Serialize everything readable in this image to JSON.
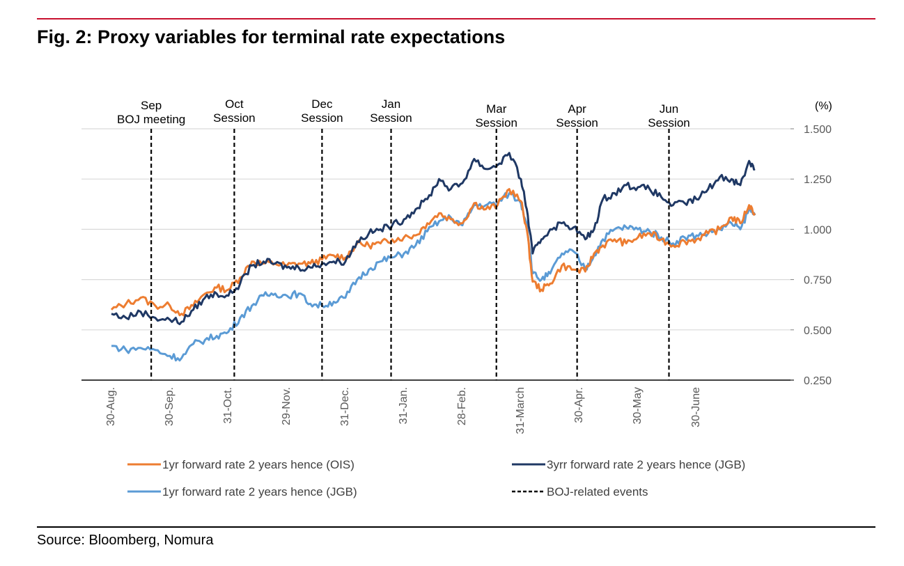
{
  "figure": {
    "title": "Fig. 2: Proxy variables for terminal rate expectations",
    "source": "Source: Bloomberg, Nomura",
    "accent_color": "#c8102e"
  },
  "chart_data": {
    "type": "line",
    "title": "Fig. 2: Proxy variables for terminal rate expectations",
    "ylabel": "(%)",
    "ylim": [
      0.25,
      1.5
    ],
    "yticks": [
      "1.500",
      "1.250",
      "1.000",
      "0.750",
      "0.500",
      "0.250"
    ],
    "grid": true,
    "legend_position": "bottom",
    "x_tick_labels": [
      "30-Aug.",
      "30-Sep.",
      "31-Oct.",
      "29-Nov.",
      "31-Dec.",
      "31-Jan.",
      "28-Feb.",
      "31-March",
      "30-Apr.",
      "30-May",
      "30-June"
    ],
    "events": [
      {
        "label_lines": [
          "Sep",
          "BOJ meeting"
        ],
        "after_tick": 0,
        "fraction": 0.68
      },
      {
        "label_lines": [
          "Oct",
          "Session"
        ],
        "after_tick": 1,
        "fraction": 1.1
      },
      {
        "label_lines": [
          "Dec",
          "Session"
        ],
        "after_tick": 3,
        "fraction": 0.6
      },
      {
        "label_lines": [
          "Jan",
          "Session"
        ],
        "after_tick": 4,
        "fraction": 0.78
      },
      {
        "label_lines": [
          "Mar",
          "Session"
        ],
        "after_tick": 6,
        "fraction": 0.58
      },
      {
        "label_lines": [
          "Apr",
          "Session"
        ],
        "after_tick": 7,
        "fraction": 0.96
      },
      {
        "label_lines": [
          "Jun",
          "Session"
        ],
        "after_tick": 9,
        "fraction": 0.53
      }
    ],
    "series": [
      {
        "name": "1yr forward rate 2 years hence (OIS)",
        "color": "#ed7d31",
        "points": [
          [
            0,
            0.6
          ],
          [
            0.25,
            0.63
          ],
          [
            0.5,
            0.66
          ],
          [
            0.75,
            0.62
          ],
          [
            1.0,
            0.62
          ],
          [
            1.2,
            0.58
          ],
          [
            1.4,
            0.62
          ],
          [
            1.6,
            0.68
          ],
          [
            1.8,
            0.71
          ],
          [
            2.0,
            0.7
          ],
          [
            2.2,
            0.76
          ],
          [
            2.4,
            0.84
          ],
          [
            2.6,
            0.83
          ],
          [
            2.8,
            0.83
          ],
          [
            3.0,
            0.82
          ],
          [
            3.2,
            0.83
          ],
          [
            3.4,
            0.83
          ],
          [
            3.6,
            0.85
          ],
          [
            3.8,
            0.87
          ],
          [
            4.0,
            0.86
          ],
          [
            4.2,
            0.93
          ],
          [
            4.4,
            0.92
          ],
          [
            4.6,
            0.93
          ],
          [
            4.8,
            0.95
          ],
          [
            5.0,
            0.96
          ],
          [
            5.2,
            0.97
          ],
          [
            5.4,
            1.03
          ],
          [
            5.6,
            1.08
          ],
          [
            5.8,
            1.05
          ],
          [
            6.0,
            1.03
          ],
          [
            6.2,
            1.13
          ],
          [
            6.4,
            1.1
          ],
          [
            6.6,
            1.12
          ],
          [
            6.8,
            1.2
          ],
          [
            7.0,
            1.14
          ],
          [
            7.1,
            1.0
          ],
          [
            7.2,
            0.74
          ],
          [
            7.35,
            0.7
          ],
          [
            7.5,
            0.73
          ],
          [
            7.7,
            0.82
          ],
          [
            7.9,
            0.8
          ],
          [
            8.1,
            0.79
          ],
          [
            8.25,
            0.88
          ],
          [
            8.4,
            0.92
          ],
          [
            8.6,
            0.95
          ],
          [
            8.8,
            0.93
          ],
          [
            9.0,
            0.96
          ],
          [
            9.2,
            0.98
          ],
          [
            9.4,
            0.95
          ],
          [
            9.6,
            0.92
          ],
          [
            9.8,
            0.94
          ],
          [
            10.0,
            0.95
          ],
          [
            10.2,
            0.98
          ],
          [
            10.4,
            1.0
          ],
          [
            10.6,
            1.06
          ],
          [
            10.75,
            1.03
          ],
          [
            10.9,
            1.12
          ],
          [
            11.0,
            1.08
          ]
        ]
      },
      {
        "name": "1yr forward rate 2 years hence (JGB)",
        "color": "#5b9bd5",
        "points": [
          [
            0,
            0.42
          ],
          [
            0.25,
            0.4
          ],
          [
            0.5,
            0.41
          ],
          [
            0.75,
            0.4
          ],
          [
            1.0,
            0.37
          ],
          [
            1.2,
            0.36
          ],
          [
            1.4,
            0.43
          ],
          [
            1.6,
            0.45
          ],
          [
            1.8,
            0.47
          ],
          [
            2.0,
            0.49
          ],
          [
            2.2,
            0.56
          ],
          [
            2.4,
            0.62
          ],
          [
            2.6,
            0.67
          ],
          [
            2.8,
            0.68
          ],
          [
            3.0,
            0.67
          ],
          [
            3.2,
            0.68
          ],
          [
            3.4,
            0.63
          ],
          [
            3.6,
            0.62
          ],
          [
            3.8,
            0.64
          ],
          [
            4.0,
            0.66
          ],
          [
            4.2,
            0.75
          ],
          [
            4.4,
            0.8
          ],
          [
            4.6,
            0.84
          ],
          [
            4.8,
            0.86
          ],
          [
            5.0,
            0.88
          ],
          [
            5.2,
            0.92
          ],
          [
            5.4,
            0.99
          ],
          [
            5.6,
            1.04
          ],
          [
            5.8,
            1.06
          ],
          [
            6.0,
            1.02
          ],
          [
            6.2,
            1.12
          ],
          [
            6.4,
            1.12
          ],
          [
            6.6,
            1.13
          ],
          [
            6.8,
            1.18
          ],
          [
            7.0,
            1.13
          ],
          [
            7.1,
            1.03
          ],
          [
            7.2,
            0.78
          ],
          [
            7.35,
            0.75
          ],
          [
            7.5,
            0.78
          ],
          [
            7.7,
            0.88
          ],
          [
            7.9,
            0.89
          ],
          [
            8.1,
            0.8
          ],
          [
            8.25,
            0.87
          ],
          [
            8.4,
            0.95
          ],
          [
            8.6,
            1.0
          ],
          [
            8.8,
            1.01
          ],
          [
            9.0,
            1.0
          ],
          [
            9.2,
            0.99
          ],
          [
            9.4,
            0.96
          ],
          [
            9.6,
            0.93
          ],
          [
            9.8,
            0.96
          ],
          [
            10.0,
            0.97
          ],
          [
            10.2,
            0.98
          ],
          [
            10.4,
            1.0
          ],
          [
            10.6,
            1.03
          ],
          [
            10.75,
            1.0
          ],
          [
            10.9,
            1.1
          ],
          [
            11.0,
            1.07
          ]
        ]
      },
      {
        "name": "3yrr forward rate 2 years hence (JGB)",
        "color": "#1f3864",
        "points": [
          [
            0,
            0.58
          ],
          [
            0.25,
            0.56
          ],
          [
            0.5,
            0.59
          ],
          [
            0.75,
            0.56
          ],
          [
            1.0,
            0.55
          ],
          [
            1.2,
            0.54
          ],
          [
            1.4,
            0.6
          ],
          [
            1.6,
            0.66
          ],
          [
            1.8,
            0.68
          ],
          [
            2.0,
            0.67
          ],
          [
            2.2,
            0.73
          ],
          [
            2.4,
            0.82
          ],
          [
            2.6,
            0.84
          ],
          [
            2.8,
            0.83
          ],
          [
            3.0,
            0.81
          ],
          [
            3.2,
            0.81
          ],
          [
            3.4,
            0.81
          ],
          [
            3.6,
            0.83
          ],
          [
            3.8,
            0.84
          ],
          [
            4.0,
            0.84
          ],
          [
            4.2,
            0.94
          ],
          [
            4.4,
            0.98
          ],
          [
            4.6,
            1.0
          ],
          [
            4.8,
            1.02
          ],
          [
            5.0,
            1.05
          ],
          [
            5.2,
            1.1
          ],
          [
            5.4,
            1.15
          ],
          [
            5.6,
            1.25
          ],
          [
            5.8,
            1.2
          ],
          [
            6.0,
            1.23
          ],
          [
            6.2,
            1.35
          ],
          [
            6.4,
            1.3
          ],
          [
            6.6,
            1.32
          ],
          [
            6.8,
            1.38
          ],
          [
            7.0,
            1.25
          ],
          [
            7.1,
            1.1
          ],
          [
            7.2,
            0.88
          ],
          [
            7.35,
            0.95
          ],
          [
            7.5,
            1.0
          ],
          [
            7.7,
            1.03
          ],
          [
            7.9,
            1.01
          ],
          [
            8.1,
            0.95
          ],
          [
            8.25,
            1.0
          ],
          [
            8.4,
            1.15
          ],
          [
            8.6,
            1.18
          ],
          [
            8.8,
            1.22
          ],
          [
            9.0,
            1.21
          ],
          [
            9.2,
            1.2
          ],
          [
            9.4,
            1.16
          ],
          [
            9.6,
            1.12
          ],
          [
            9.8,
            1.13
          ],
          [
            10.0,
            1.15
          ],
          [
            10.2,
            1.2
          ],
          [
            10.4,
            1.26
          ],
          [
            10.6,
            1.25
          ],
          [
            10.75,
            1.22
          ],
          [
            10.9,
            1.34
          ],
          [
            11.0,
            1.3
          ]
        ]
      }
    ],
    "legend": [
      {
        "label": "1yr forward rate 2 years hence (OIS)",
        "color": "#ed7d31",
        "style": "solid"
      },
      {
        "label": "3yrr forward rate 2 years hence (JGB)",
        "color": "#1f3864",
        "style": "solid"
      },
      {
        "label": "1yr forward rate 2 years hence (JGB)",
        "color": "#5b9bd5",
        "style": "solid"
      },
      {
        "label": "BOJ-related events",
        "color": "#000000",
        "style": "dashed"
      }
    ]
  }
}
